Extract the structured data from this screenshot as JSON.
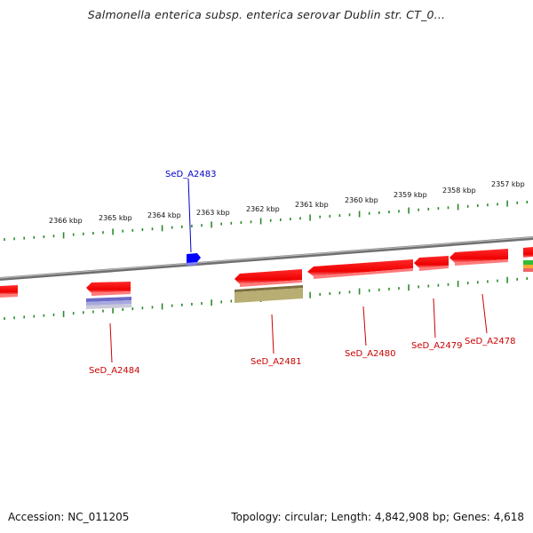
{
  "title": "Salmonella enterica subsp. enterica serovar Dublin str. CT_0...",
  "footer": {
    "accession": "Accession: NC_011205",
    "summary": "Topology: circular; Length: 4,842,908 bp; Genes: 4,618"
  },
  "colors": {
    "backbone": "#7f7f7f",
    "ticks": "#2a8a2a",
    "gene_red": "#ff0000",
    "gene_blue": "#0000ff",
    "label_red": "#cc0000",
    "label_blue": "#0000cc",
    "band_purple": "#7b7bd0",
    "band_olive": "#b6aa6a"
  },
  "ticks": {
    "unit": "kbp",
    "labels": [
      "2366 kbp",
      "2365 kbp",
      "2364 kbp",
      "2363 kbp",
      "2362 kbp",
      "2361 kbp",
      "2360 kbp",
      "2359 kbp",
      "2358 kbp",
      "2357 kbp"
    ]
  },
  "genes": [
    {
      "id": "SeD_A2483",
      "label": "SeD_A2483",
      "strand": "+",
      "color": "blue"
    },
    {
      "id": "SeD_A2484",
      "label": "SeD_A2484",
      "strand": "-",
      "color": "red"
    },
    {
      "id": "SeD_A2481",
      "label": "SeD_A2481",
      "strand": "-",
      "color": "red"
    },
    {
      "id": "SeD_A2480",
      "label": "SeD_A2480",
      "strand": "-",
      "color": "red"
    },
    {
      "id": "SeD_A2479",
      "label": "SeD_A2479",
      "strand": "-",
      "color": "red"
    },
    {
      "id": "SeD_A2478",
      "label": "SeD_A2478",
      "strand": "-",
      "color": "red"
    }
  ]
}
